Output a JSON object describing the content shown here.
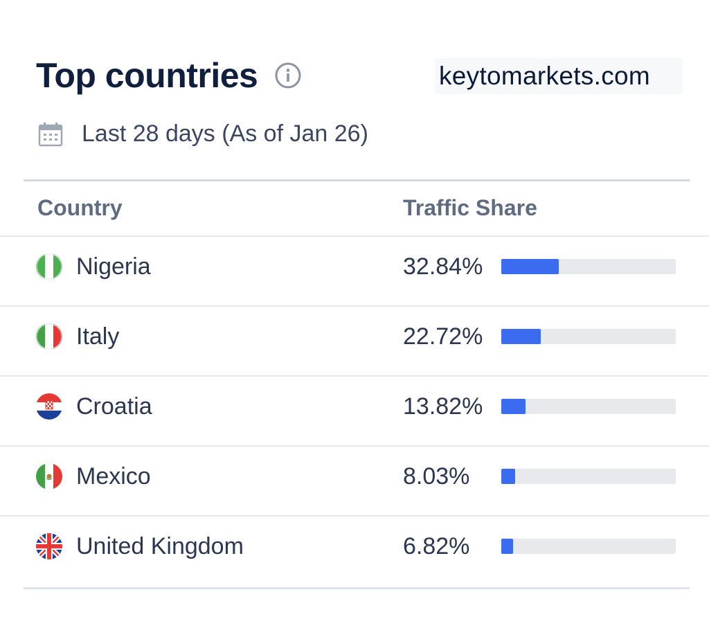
{
  "header": {
    "title": "Top countries",
    "info_icon": "info-icon",
    "brand": "keytomarkets.com"
  },
  "date_range": {
    "icon": "calendar-icon",
    "text": "Last 28 days (As of Jan 26)"
  },
  "table": {
    "columns": [
      "Country",
      "Traffic Share"
    ],
    "rows": [
      {
        "country": "Nigeria",
        "share_text": "32.84%",
        "share": 32.84,
        "flag": "nigeria-flag-icon"
      },
      {
        "country": "Italy",
        "share_text": "22.72%",
        "share": 22.72,
        "flag": "italy-flag-icon"
      },
      {
        "country": "Croatia",
        "share_text": "13.82%",
        "share": 13.82,
        "flag": "croatia-flag-icon"
      },
      {
        "country": "Mexico",
        "share_text": "8.03%",
        "share": 8.03,
        "flag": "mexico-flag-icon"
      },
      {
        "country": "United Kingdom",
        "share_text": "6.82%",
        "share": 6.82,
        "flag": "uk-flag-icon"
      }
    ]
  },
  "colors": {
    "bar_fill": "#3b6cf0",
    "bar_track": "#e7e9ed",
    "title": "#0f1f3d"
  }
}
